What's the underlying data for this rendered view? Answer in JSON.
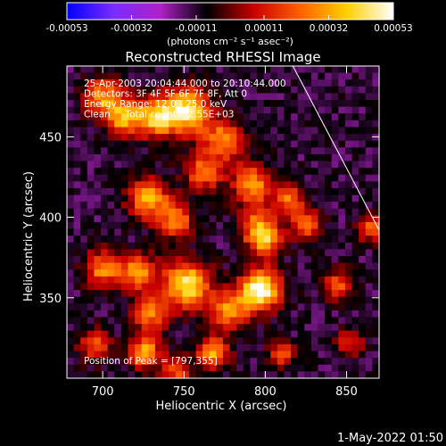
{
  "colorbar": {
    "tick_labels": [
      "-0.00053",
      "-0.00032",
      "-0.00011",
      "0.00011",
      "0.00032",
      "0.00053"
    ],
    "tick_values": [
      -0.00053,
      -0.00032,
      -0.00011,
      0.00011,
      0.00032,
      0.00053
    ],
    "range": [
      -0.00053,
      0.00053
    ],
    "unit_label": "(photons cm⁻² s⁻¹ asec⁻²)"
  },
  "footer": {
    "timestamp": "1-May-2022 01:50"
  },
  "chart_data": {
    "type": "heatmap",
    "title": "Reconstructed RHESSI Image",
    "xlabel": "Heliocentric X (arcsec)",
    "ylabel": "Heliocentric Y (arcsec)",
    "xlim": [
      678,
      870
    ],
    "ylim": [
      300,
      494
    ],
    "x_ticks": [
      700,
      750,
      800,
      850
    ],
    "y_ticks": [
      350,
      400,
      450
    ],
    "info_lines": [
      "25-Apr-2003 20:04:44.000 to 20:10:44.000",
      "Detectors: 3F 4F 5F 6F 7F 8F, Att 0",
      "Energy Range: 12.0 - 25.0 keV",
      "Clean     Total counts: 2.55E+03"
    ],
    "peak_label": "Position of Peak = [797,355]",
    "peak": [
      797,
      355
    ],
    "limb_line": [
      [
        817,
        494
      ],
      [
        870,
        392
      ]
    ],
    "colormap": [
      "#0000ff",
      "#7a2cff",
      "#b020c8",
      "#000000",
      "#c80000",
      "#ff6000",
      "#ffd000",
      "#ffffff"
    ],
    "sources": [
      {
        "x": 752,
        "y": 466,
        "value": 0.00045,
        "sigma": 10
      },
      {
        "x": 732,
        "y": 462,
        "value": 0.00035,
        "sigma": 9
      },
      {
        "x": 700,
        "y": 475,
        "value": 0.00028,
        "sigma": 8
      },
      {
        "x": 712,
        "y": 462,
        "value": 0.0003,
        "sigma": 8
      },
      {
        "x": 775,
        "y": 448,
        "value": 0.00028,
        "sigma": 9
      },
      {
        "x": 762,
        "y": 428,
        "value": 0.00025,
        "sigma": 8
      },
      {
        "x": 728,
        "y": 412,
        "value": 0.00032,
        "sigma": 9
      },
      {
        "x": 745,
        "y": 398,
        "value": 0.00025,
        "sigma": 8
      },
      {
        "x": 792,
        "y": 420,
        "value": 0.0003,
        "sigma": 9
      },
      {
        "x": 815,
        "y": 412,
        "value": 0.00022,
        "sigma": 7
      },
      {
        "x": 796,
        "y": 394,
        "value": 0.00025,
        "sigma": 8
      },
      {
        "x": 825,
        "y": 395,
        "value": 0.00022,
        "sigma": 7
      },
      {
        "x": 800,
        "y": 385,
        "value": 0.00022,
        "sigma": 7
      },
      {
        "x": 865,
        "y": 393,
        "value": 0.0002,
        "sigma": 6
      },
      {
        "x": 700,
        "y": 368,
        "value": 0.00028,
        "sigma": 8
      },
      {
        "x": 722,
        "y": 366,
        "value": 0.0003,
        "sigma": 8
      },
      {
        "x": 752,
        "y": 358,
        "value": 0.00045,
        "sigma": 10
      },
      {
        "x": 797,
        "y": 355,
        "value": 0.00053,
        "sigma": 9
      },
      {
        "x": 778,
        "y": 342,
        "value": 0.00028,
        "sigma": 8
      },
      {
        "x": 730,
        "y": 340,
        "value": 0.00025,
        "sigma": 8
      },
      {
        "x": 845,
        "y": 358,
        "value": 0.0002,
        "sigma": 7
      },
      {
        "x": 726,
        "y": 316,
        "value": 0.00035,
        "sigma": 7
      },
      {
        "x": 768,
        "y": 316,
        "value": 0.00032,
        "sigma": 7
      },
      {
        "x": 695,
        "y": 320,
        "value": 0.0002,
        "sigma": 7
      },
      {
        "x": 810,
        "y": 315,
        "value": 0.00018,
        "sigma": 6
      },
      {
        "x": 745,
        "y": 305,
        "value": 0.00022,
        "sigma": 6
      },
      {
        "x": 852,
        "y": 322,
        "value": 0.00016,
        "sigma": 6
      }
    ]
  }
}
